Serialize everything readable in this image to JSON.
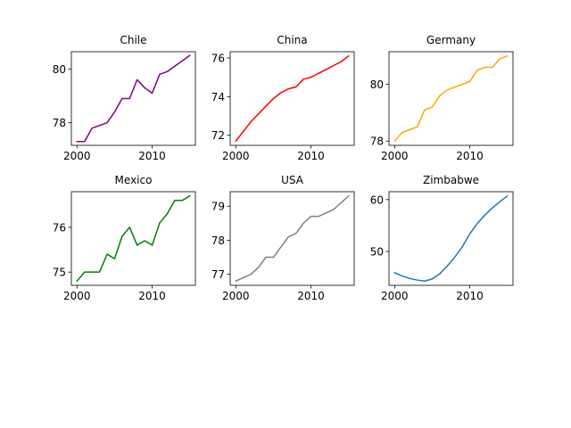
{
  "chart_data": [
    {
      "type": "line",
      "title": "Chile",
      "color": "#800080",
      "x": [
        2000,
        2001,
        2002,
        2003,
        2004,
        2005,
        2006,
        2007,
        2008,
        2009,
        2010,
        2011,
        2012,
        2013,
        2014,
        2015
      ],
      "values": [
        77.3,
        77.3,
        77.8,
        77.9,
        78.0,
        78.4,
        78.9,
        78.9,
        79.6,
        79.3,
        79.1,
        79.8,
        79.9,
        80.1,
        80.3,
        80.5
      ],
      "xticks": [
        2000,
        2010
      ],
      "yticks": [
        78,
        80
      ],
      "xlim": [
        1999.25,
        2015.75
      ],
      "ylim": [
        77.16,
        80.64
      ]
    },
    {
      "type": "line",
      "title": "China",
      "color": "#ff0000",
      "x": [
        2000,
        2001,
        2002,
        2003,
        2004,
        2005,
        2006,
        2007,
        2008,
        2009,
        2010,
        2011,
        2012,
        2013,
        2014,
        2015
      ],
      "values": [
        71.7,
        72.2,
        72.7,
        73.1,
        73.5,
        73.9,
        74.2,
        74.4,
        74.5,
        74.9,
        75.0,
        75.2,
        75.4,
        75.6,
        75.8,
        76.1
      ],
      "xticks": [
        2000,
        2010
      ],
      "yticks": [
        72,
        74,
        76
      ],
      "xlim": [
        1999.25,
        2015.75
      ],
      "ylim": [
        71.48,
        76.32
      ]
    },
    {
      "type": "line",
      "title": "Germany",
      "color": "#ffa500",
      "x": [
        2000,
        2001,
        2002,
        2003,
        2004,
        2005,
        2006,
        2007,
        2008,
        2009,
        2010,
        2011,
        2012,
        2013,
        2014,
        2015
      ],
      "values": [
        78.0,
        78.3,
        78.4,
        78.5,
        79.1,
        79.2,
        79.6,
        79.8,
        79.9,
        80.0,
        80.1,
        80.5,
        80.6,
        80.6,
        80.9,
        81.0
      ],
      "xticks": [
        2000,
        2010
      ],
      "yticks": [
        78,
        80
      ],
      "xlim": [
        1999.25,
        2015.75
      ],
      "ylim": [
        77.85,
        81.15
      ]
    },
    {
      "type": "line",
      "title": "Mexico",
      "color": "#008000",
      "x": [
        2000,
        2001,
        2002,
        2003,
        2004,
        2005,
        2006,
        2007,
        2008,
        2009,
        2010,
        2011,
        2012,
        2013,
        2014,
        2015
      ],
      "values": [
        74.8,
        75.0,
        75.0,
        75.0,
        75.4,
        75.3,
        75.8,
        76.0,
        75.6,
        75.7,
        75.6,
        76.1,
        76.3,
        76.6,
        76.6,
        76.7
      ],
      "xticks": [
        2000,
        2010
      ],
      "yticks": [
        75,
        76
      ],
      "xlim": [
        1999.25,
        2015.75
      ],
      "ylim": [
        74.705,
        76.795
      ]
    },
    {
      "type": "line",
      "title": "USA",
      "color": "#808080",
      "x": [
        2000,
        2001,
        2002,
        2003,
        2004,
        2005,
        2006,
        2007,
        2008,
        2009,
        2010,
        2011,
        2012,
        2013,
        2014,
        2015
      ],
      "values": [
        76.8,
        76.9,
        77.0,
        77.2,
        77.5,
        77.5,
        77.8,
        78.1,
        78.2,
        78.5,
        78.7,
        78.7,
        78.8,
        78.9,
        79.1,
        79.3
      ],
      "xticks": [
        2000,
        2010
      ],
      "yticks": [
        77,
        78,
        79
      ],
      "xlim": [
        1999.25,
        2015.75
      ],
      "ylim": [
        76.675,
        79.425
      ]
    },
    {
      "type": "line",
      "title": "Zimbabwe",
      "color": "#1f77b4",
      "x": [
        2000,
        2001,
        2002,
        2003,
        2004,
        2005,
        2006,
        2007,
        2008,
        2009,
        2010,
        2011,
        2012,
        2013,
        2014,
        2015
      ],
      "values": [
        45.9,
        45.3,
        44.8,
        44.5,
        44.3,
        44.7,
        45.7,
        47.2,
        48.9,
        50.9,
        53.4,
        55.4,
        57.0,
        58.4,
        59.6,
        60.7
      ],
      "xticks": [
        2000,
        2010
      ],
      "yticks": [
        50,
        60
      ],
      "xlim": [
        1999.25,
        2015.75
      ],
      "ylim": [
        43.48,
        61.52
      ]
    }
  ]
}
